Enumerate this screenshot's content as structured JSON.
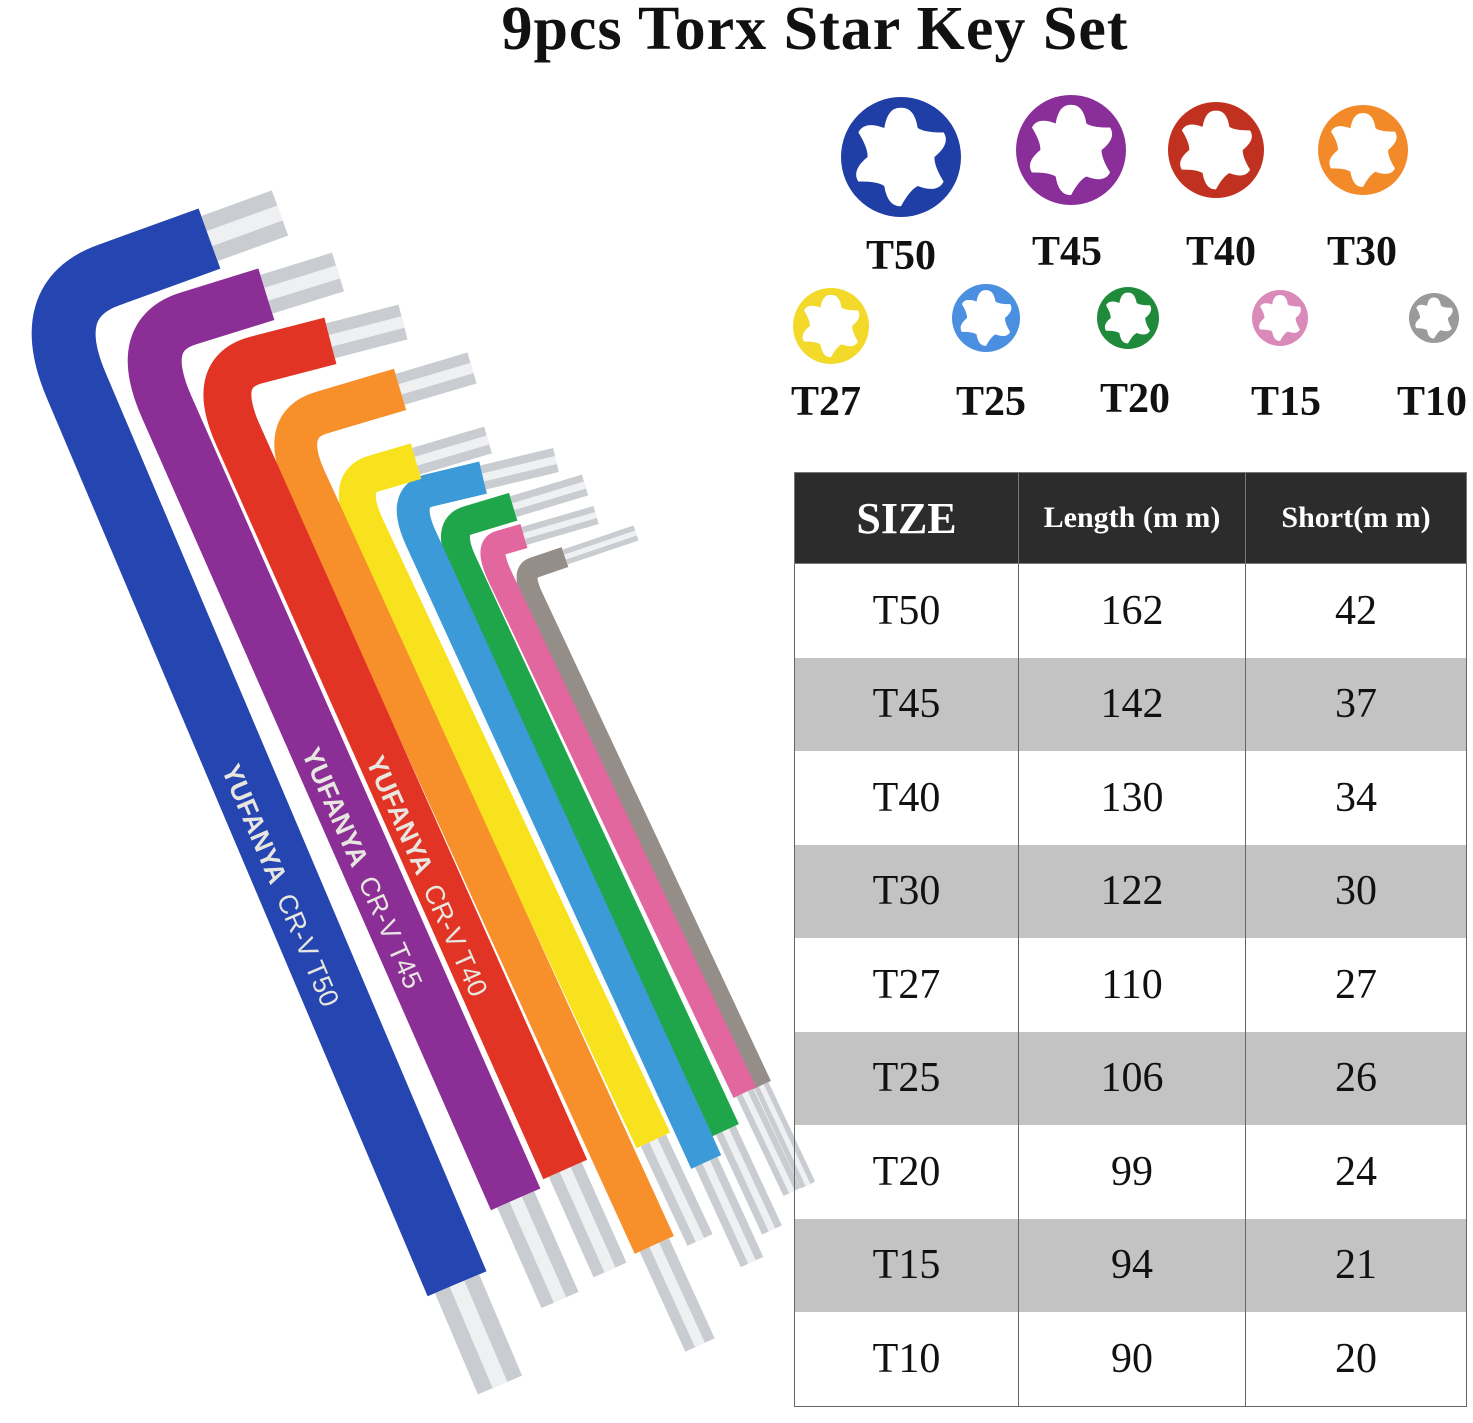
{
  "title": "9pcs Torx Star Key Set",
  "torx_icons": [
    {
      "label": "T50",
      "color": "#1f3fa6"
    },
    {
      "label": "T45",
      "color": "#8a2f9a"
    },
    {
      "label": "T40",
      "color": "#c0321f"
    },
    {
      "label": "T30",
      "color": "#f28a2a"
    },
    {
      "label": "T27",
      "color": "#f2d92a"
    },
    {
      "label": "T25",
      "color": "#4a8fe0"
    },
    {
      "label": "T20",
      "color": "#1f8a3a"
    },
    {
      "label": "T15",
      "color": "#d98ab8"
    },
    {
      "label": "T10",
      "color": "#9a9a9a"
    }
  ],
  "keys": [
    {
      "brand": "YUFANYA",
      "marking": "CR-V T50",
      "color": "#2545b0"
    },
    {
      "brand": "YUFANYA",
      "marking": "CR-V T45",
      "color": "#8b2f96"
    },
    {
      "brand": "YUFANYA",
      "marking": "CR-V T40",
      "color": "#e23424"
    },
    {
      "brand": "",
      "marking": "",
      "color": "#f7902a"
    },
    {
      "brand": "",
      "marking": "",
      "color": "#f8e21e"
    },
    {
      "brand": "",
      "marking": "",
      "color": "#3d9ad8"
    },
    {
      "brand": "",
      "marking": "",
      "color": "#1fa64a"
    },
    {
      "brand": "",
      "marking": "",
      "color": "#e2679e"
    },
    {
      "brand": "",
      "marking": "",
      "color": "#958d88"
    }
  ],
  "table": {
    "headers": [
      "SIZE",
      "Length (m m)",
      "Short(m m)"
    ],
    "rows": [
      [
        "T50",
        "162",
        "42"
      ],
      [
        "T45",
        "142",
        "37"
      ],
      [
        "T40",
        "130",
        "34"
      ],
      [
        "T30",
        "122",
        "30"
      ],
      [
        "T27",
        "110",
        "27"
      ],
      [
        "T25",
        "106",
        "26"
      ],
      [
        "T20",
        "99",
        "24"
      ],
      [
        "T15",
        "94",
        "21"
      ],
      [
        "T10",
        "90",
        "20"
      ]
    ]
  }
}
